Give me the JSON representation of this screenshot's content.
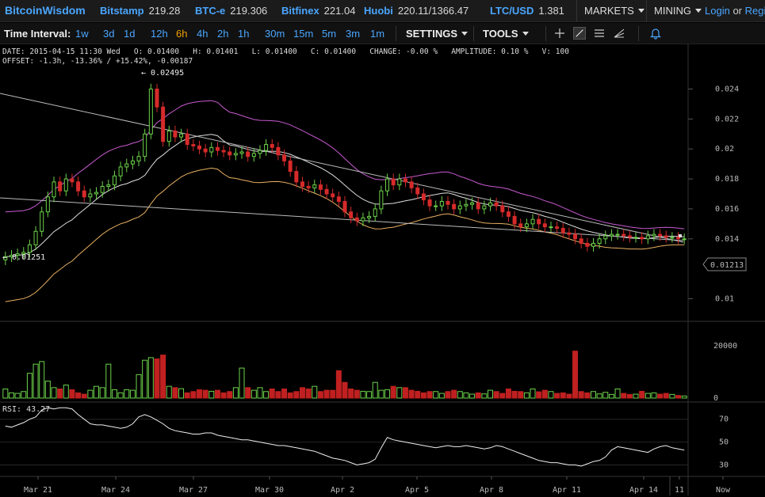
{
  "nav": {
    "brand": "BitcoinWisdom",
    "tickers": [
      {
        "exchange": "Bitstamp",
        "price": "219.28"
      },
      {
        "exchange": "BTC-e",
        "price": "219.306"
      },
      {
        "exchange": "Bitfinex",
        "price": "221.04"
      },
      {
        "exchange": "Huobi",
        "price": "220.11/1366.47"
      },
      {
        "exchange": "LTC/USD",
        "price": "1.381"
      }
    ],
    "markets": "MARKETS",
    "mining": "MINING",
    "login": "Login",
    "or": "or",
    "register": "Regi"
  },
  "toolbar": {
    "time_interval_label": "Time Interval:",
    "intervals": [
      "1w",
      "3d",
      "1d",
      "12h",
      "6h",
      "4h",
      "2h",
      "1h",
      "30m",
      "15m",
      "5m",
      "3m",
      "1m"
    ],
    "active_interval": "6h",
    "settings": "SETTINGS",
    "tools": "TOOLS"
  },
  "info": {
    "line1": "DATE: 2015-04-15 11:30 Wed   O: 0.01400   H: 0.01401   L: 0.01400   C: 0.01400   CHANGE: -0.00 %   AMPLITUDE: 0.10 %   V: 100",
    "line2": "OFFSET: -1.3h, -13.36% / +15.42%, -0.00187"
  },
  "chart_data": {
    "type": "candlestick",
    "y_ticks": [
      "0.024",
      "0.022",
      "0.02",
      "0.018",
      "0.016",
      "0.014",
      "0.01"
    ],
    "ylim": [
      0.0086,
      0.0254
    ],
    "x_ticks": [
      "Mar 21",
      "Mar 24",
      "Mar 27",
      "Mar 30",
      "Apr 2",
      "Apr 5",
      "Apr 8",
      "Apr 11",
      "Apr 14",
      "11",
      "Now"
    ],
    "high_label": "← 0.02495",
    "low_label": "← 0.01251",
    "current_price": "0.01213",
    "candle_closes": [
      0.0128,
      0.0129,
      0.013,
      0.0131,
      0.0136,
      0.0145,
      0.0158,
      0.0168,
      0.0178,
      0.0172,
      0.018,
      0.0178,
      0.0172,
      0.0168,
      0.017,
      0.0171,
      0.0175,
      0.0176,
      0.0182,
      0.0188,
      0.019,
      0.0192,
      0.0195,
      0.021,
      0.024,
      0.0228,
      0.0205,
      0.0212,
      0.0208,
      0.021,
      0.0203,
      0.0202,
      0.02,
      0.0198,
      0.0201,
      0.0199,
      0.0198,
      0.0196,
      0.0197,
      0.0198,
      0.0195,
      0.0197,
      0.0199,
      0.0203,
      0.0201,
      0.0196,
      0.0192,
      0.0185,
      0.0178,
      0.0175,
      0.0174,
      0.0176,
      0.0173,
      0.017,
      0.0168,
      0.0165,
      0.0158,
      0.0154,
      0.0152,
      0.0154,
      0.0155,
      0.016,
      0.0172,
      0.018,
      0.0176,
      0.018,
      0.0178,
      0.0174,
      0.017,
      0.0166,
      0.0162,
      0.0162,
      0.0165,
      0.0163,
      0.016,
      0.0162,
      0.0163,
      0.0164,
      0.016,
      0.0162,
      0.0164,
      0.0162,
      0.0158,
      0.0155,
      0.015,
      0.0148,
      0.015,
      0.0153,
      0.015,
      0.0148,
      0.0148,
      0.0147,
      0.0144,
      0.0143,
      0.014,
      0.0137,
      0.0135,
      0.0137,
      0.014,
      0.0142,
      0.0143,
      0.0143,
      0.0142,
      0.0141,
      0.0141,
      0.014,
      0.0142,
      0.0143,
      0.0142,
      0.0141,
      0.0141,
      0.014,
      0.014
    ],
    "volume_ticks": [
      "20000",
      "0"
    ],
    "volume_max": 27000,
    "volumes": [
      3500,
      2000,
      1800,
      2500,
      9500,
      13000,
      14000,
      6500,
      4000,
      3500,
      5000,
      3200,
      2000,
      1500,
      3000,
      4500,
      4000,
      13000,
      3200,
      2000,
      3200,
      3000,
      9000,
      14500,
      15500,
      15000,
      16500,
      4500,
      4000,
      3600,
      2000,
      2500,
      3200,
      3000,
      2600,
      3000,
      2000,
      2500,
      4000,
      11500,
      4000,
      3000,
      4000,
      2500,
      3500,
      2500,
      3500,
      2000,
      2500,
      4000,
      3500,
      4500,
      2500,
      3000,
      3000,
      10500,
      6000,
      3500,
      3000,
      2600,
      2500,
      6000,
      3000,
      3200,
      4500,
      4000,
      4000,
      3000,
      2600,
      2000,
      2500,
      2500,
      1800,
      2500,
      3000,
      2500,
      2000,
      1500,
      2000,
      1600,
      3000,
      2500,
      1800,
      3500,
      2600,
      2500,
      2000,
      3500,
      2400,
      3000,
      2500,
      1800,
      2000,
      1500,
      18000,
      2500,
      2000,
      2500,
      1600,
      2200,
      1400,
      3500,
      1800,
      1400,
      1500,
      2600,
      1800,
      2000,
      1500,
      1800,
      1400,
      1000,
      800
    ],
    "rsi_label": "RSI: 43.27",
    "rsi_ticks": [
      "70",
      "50",
      "30"
    ],
    "rsi_values": [
      64,
      63,
      65,
      67,
      70,
      72,
      78,
      80,
      79,
      80,
      80,
      79,
      74,
      70,
      66,
      65,
      65,
      64,
      63,
      62,
      63,
      66,
      72,
      74,
      72,
      69,
      66,
      62,
      60,
      59,
      58,
      57,
      57,
      58,
      58,
      56,
      55,
      54,
      53,
      52,
      52,
      51,
      50,
      49,
      48,
      47,
      47,
      46,
      45,
      44,
      43,
      42,
      40,
      38,
      36,
      35,
      34,
      32,
      30,
      31,
      32,
      35,
      45,
      54,
      52,
      51,
      50,
      49,
      48,
      47,
      46,
      45,
      46,
      47,
      46,
      46,
      47,
      46,
      45,
      44,
      45,
      47,
      46,
      44,
      42,
      40,
      38,
      36,
      34,
      33,
      32,
      32,
      31,
      30,
      30,
      29,
      31,
      33,
      34,
      37,
      43,
      46,
      45,
      44,
      43,
      42,
      41,
      44,
      46,
      47,
      45,
      44,
      43
    ]
  }
}
